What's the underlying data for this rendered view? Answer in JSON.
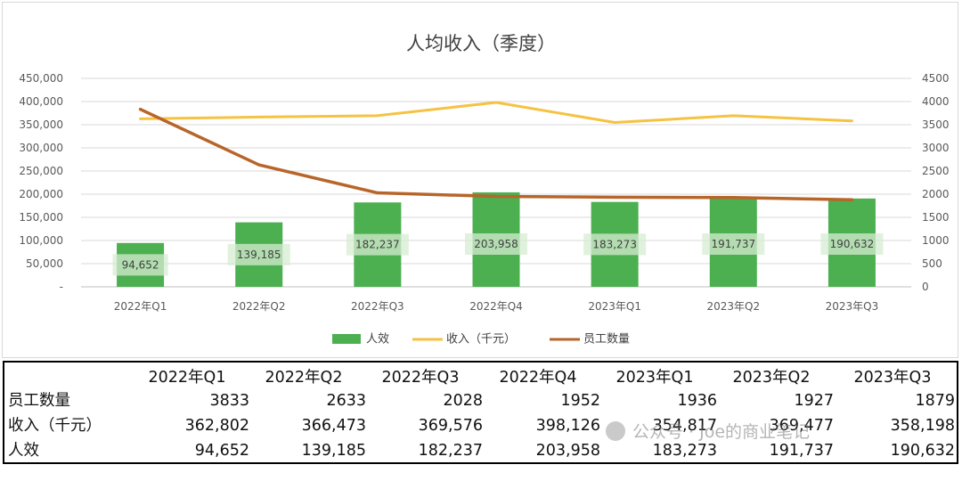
{
  "chart_data": {
    "type": "bar",
    "title": "人均收入（季度）",
    "categories": [
      "2022年Q1",
      "2022年Q2",
      "2022年Q3",
      "2022年Q4",
      "2023年Q1",
      "2023年Q2",
      "2023年Q3"
    ],
    "series": [
      {
        "name": "人效",
        "type": "bar",
        "axis": "left",
        "color": "#4caf50",
        "values": [
          94652,
          139185,
          182237,
          203958,
          183273,
          191737,
          190632
        ],
        "data_labels": [
          "94,652",
          "139,185",
          "182,237",
          "203,958",
          "183,273",
          "191,737",
          "190,632"
        ]
      },
      {
        "name": "收入（千元）",
        "type": "line",
        "axis": "left",
        "color": "#f5c242",
        "values": [
          362802,
          366473,
          369576,
          398126,
          354817,
          369477,
          358198
        ]
      },
      {
        "name": "员工数量",
        "type": "line",
        "axis": "right",
        "color": "#b8652a",
        "values": [
          3833,
          2633,
          2028,
          1952,
          1936,
          1927,
          1879
        ]
      }
    ],
    "y_left": {
      "ylim": [
        0,
        450000
      ],
      "ticks": [
        "-",
        "50,000",
        "100,000",
        "150,000",
        "200,000",
        "250,000",
        "300,000",
        "350,000",
        "400,000",
        "450,000"
      ]
    },
    "y_right": {
      "ylim": [
        0,
        4500
      ],
      "ticks": [
        "0",
        "500",
        "1000",
        "1500",
        "2000",
        "2500",
        "3000",
        "3500",
        "4000",
        "4500"
      ]
    },
    "grid": true,
    "legend_position": "bottom"
  },
  "table": {
    "headers": [
      "2022年Q1",
      "2022年Q2",
      "2022年Q3",
      "2022年Q4",
      "2023年Q1",
      "2023年Q2",
      "2023年Q3"
    ],
    "rows": [
      {
        "label": "员工数量",
        "values": [
          "3833",
          "2633",
          "2028",
          "1952",
          "1936",
          "1927",
          "1879"
        ]
      },
      {
        "label": "收入（千元）",
        "values": [
          "362,802",
          "366,473",
          "369,576",
          "398,126",
          "354,817",
          "369,477",
          "358,198"
        ]
      },
      {
        "label": "人效",
        "values": [
          "94,652",
          "139,185",
          "182,237",
          "203,958",
          "183,273",
          "191,737",
          "190,632"
        ]
      }
    ]
  },
  "watermark": {
    "text": "公众号 · Joe的商业笔记"
  }
}
